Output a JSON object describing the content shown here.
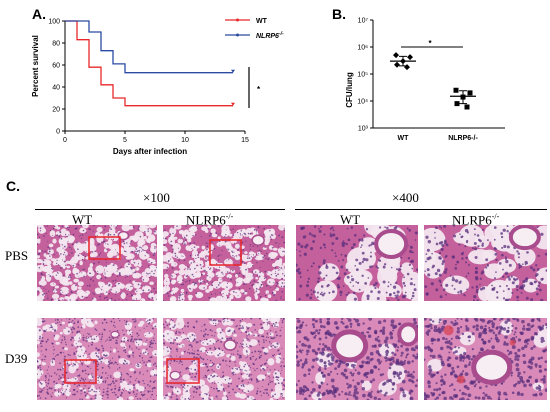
{
  "panels": {
    "a": {
      "letter": "A."
    },
    "b": {
      "letter": "B."
    },
    "c": {
      "letter": "C."
    }
  },
  "chart_data": [
    {
      "type": "line",
      "panel": "A",
      "xlabel": "Days after infection",
      "ylabel": "Percent survival",
      "xlim": [
        0,
        15
      ],
      "ylim": [
        0,
        100
      ],
      "xticks": [
        0,
        5,
        10,
        15
      ],
      "yticks": [
        0,
        20,
        40,
        60,
        80,
        100
      ],
      "legend_position": "top-right",
      "significance": "*",
      "series": [
        {
          "name": "WT",
          "color": "#e8282b",
          "x": [
            0,
            1,
            1,
            2,
            2,
            3,
            3,
            4,
            4,
            5,
            5,
            14
          ],
          "y": [
            100,
            100,
            83,
            83,
            58,
            58,
            42,
            42,
            30,
            30,
            23,
            23
          ]
        },
        {
          "name": "NLRP6-/-",
          "color": "#2b4ba3",
          "x": [
            0,
            2,
            2,
            3,
            3,
            4,
            4,
            5,
            5,
            14
          ],
          "y": [
            100,
            100,
            90,
            90,
            73,
            73,
            61,
            61,
            53,
            53
          ]
        }
      ]
    },
    {
      "type": "scatter",
      "panel": "B",
      "ylabel": "CFU/lung",
      "yscale": "log",
      "ylim": [
        1000,
        10000000
      ],
      "yticks": [
        "10³",
        "10⁴",
        "10⁵",
        "10⁶",
        "10⁷"
      ],
      "categories": [
        "WT",
        "NLRP6-/-"
      ],
      "significance": "*",
      "groups": [
        {
          "name": "WT",
          "points": [
            500000,
            420000,
            300000,
            220000,
            180000
          ],
          "mean": 300000,
          "sd_low": 200000,
          "sd_high": 450000
        },
        {
          "name": "NLRP6-/-",
          "points": [
            25000,
            20000,
            14000,
            8000,
            6000
          ],
          "mean": 15000,
          "sd_low": 8000,
          "sd_high": 24000
        }
      ]
    }
  ],
  "legend": {
    "wt": "WT",
    "nlrp6_base": "NLRP6",
    "nlrp6_sup": "-/-"
  },
  "panel_c": {
    "mag_low": "×100",
    "mag_high": "×400",
    "col_wt_low": "WT",
    "col_ko_low_base": "NLRP6",
    "col_ko_low_sup": "-/-",
    "col_wt_high": "WT",
    "col_ko_high_base": "NLRP6",
    "col_ko_high_sup": "-/-",
    "row_pbs": "PBS",
    "row_d39": "D39",
    "stain_colors": {
      "background": "#f3e6ef",
      "tissue": "#c4609c",
      "nuclei": "#5a2f7e",
      "blood": "#d8465a"
    },
    "highlight_color": "#e8242b"
  }
}
